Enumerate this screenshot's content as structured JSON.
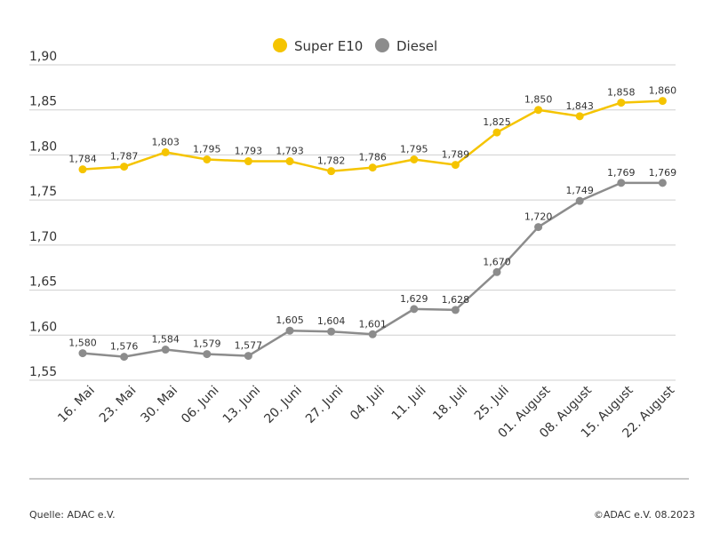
{
  "chart_data": {
    "type": "line",
    "categories": [
      "16. Mai",
      "23. Mai",
      "30. Mai",
      "06. Juni",
      "13. Juni",
      "20. Juni",
      "27. Juni",
      "04. Juli",
      "11. Juli",
      "18. Juli",
      "25. Juli",
      "01. August",
      "08. August",
      "15. August",
      "22. August"
    ],
    "series": [
      {
        "name": "Super E10",
        "color": "#f5c400",
        "values": [
          1.784,
          1.787,
          1.803,
          1.795,
          1.793,
          1.793,
          1.782,
          1.786,
          1.795,
          1.789,
          1.825,
          1.85,
          1.843,
          1.858,
          1.86
        ],
        "labels": [
          "1,784",
          "1,787",
          "1,803",
          "1,795",
          "1,793",
          "1,793",
          "1,782",
          "1,786",
          "1,795",
          "1,789",
          "1,825",
          "1,850",
          "1,843",
          "1,858",
          "1,860"
        ]
      },
      {
        "name": "Diesel",
        "color": "#8c8c8c",
        "values": [
          1.58,
          1.576,
          1.584,
          1.579,
          1.577,
          1.605,
          1.604,
          1.601,
          1.629,
          1.628,
          1.67,
          1.72,
          1.749,
          1.769,
          1.769
        ],
        "labels": [
          "1,580",
          "1,576",
          "1,584",
          "1,579",
          "1,577",
          "1,605",
          "1,604",
          "1,601",
          "1,629",
          "1,628",
          "1,670",
          "1,720",
          "1,749",
          "1,769",
          "1,769"
        ]
      }
    ],
    "ylim": [
      1.55,
      1.9
    ],
    "yticks": [
      1.55,
      1.6,
      1.65,
      1.7,
      1.75,
      1.8,
      1.85,
      1.9
    ],
    "ytick_labels": [
      "1,55",
      "1,60",
      "1,65",
      "1,70",
      "1,75",
      "1,80",
      "1,85",
      "1,90"
    ],
    "grid": true,
    "legend": "top-center"
  },
  "footer": {
    "source": "Quelle: ADAC e.V.",
    "copyright": "©ADAC e.V. 08.2023"
  }
}
